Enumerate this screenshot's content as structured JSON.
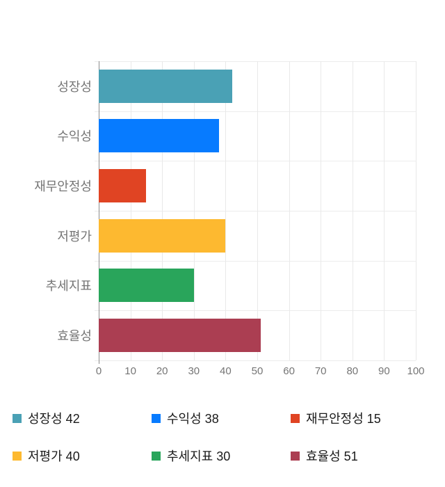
{
  "chart_data": {
    "type": "bar",
    "orientation": "horizontal",
    "title": "",
    "xlabel": "",
    "ylabel": "",
    "categories": [
      "성장성",
      "수익성",
      "재무안정성",
      "저평가",
      "추세지표",
      "효율성"
    ],
    "values": [
      42,
      38,
      15,
      40,
      30,
      51
    ],
    "colors": [
      "#4aa1b5",
      "#077bff",
      "#e04423",
      "#fdb930",
      "#29a55b",
      "#ab3e52"
    ],
    "xlim": [
      0,
      100
    ],
    "x_ticks": [
      0,
      10,
      20,
      30,
      40,
      50,
      60,
      70,
      80,
      90,
      100
    ],
    "grid": true,
    "legend_position": "bottom",
    "legend_labels": [
      "성장성 42",
      "수익성 38",
      "재무안정성 15",
      "저평가 40",
      "추세지표 30",
      "효율성 51"
    ]
  },
  "styles": {
    "background": "#ffffff",
    "axis_color": "#8c8c8c",
    "grid_color": "#e9e9e9",
    "category_label_color": "#757575",
    "tick_label_color": "#757575",
    "legend_text_color": "#1a1a1a"
  }
}
